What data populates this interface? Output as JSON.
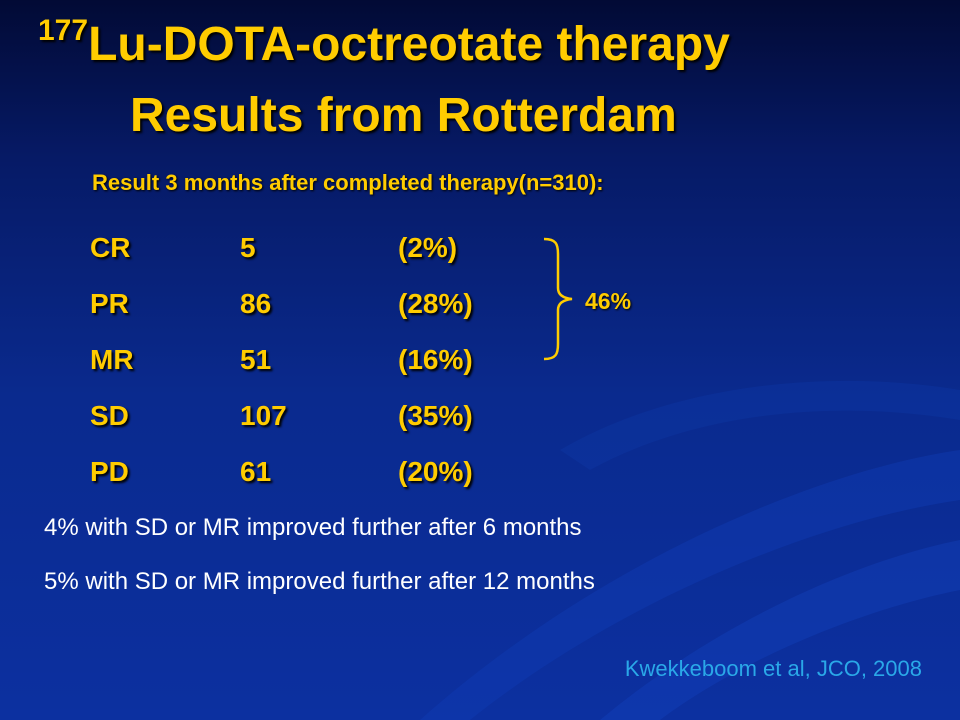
{
  "title": {
    "superscript": "177",
    "line1": "Lu-DOTA-octreotate therapy",
    "line2": "Results from Rotterdam"
  },
  "subtitle": "Result 3 months after completed therapy(n=310):",
  "results": [
    {
      "label": "CR",
      "count": "5",
      "percent": "(2%)"
    },
    {
      "label": "PR",
      "count": "86",
      "percent": "(28%)"
    },
    {
      "label": "MR",
      "count": "51",
      "percent": "(16%)"
    },
    {
      "label": "SD",
      "count": "107",
      "percent": "(35%)"
    },
    {
      "label": "PD",
      "count": "61",
      "percent": "(20%)"
    }
  ],
  "brace_label": "46%",
  "notes": [
    "4% with SD or MR improved further after 6 months",
    "5% with SD or MR improved further after 12 months"
  ],
  "reference": "Kwekkeboom et al, JCO, 2008",
  "colors": {
    "accent": "#ffcc00",
    "background": "#0a2a8e",
    "reference": "#2aa8e8",
    "text": "#ffffff"
  }
}
